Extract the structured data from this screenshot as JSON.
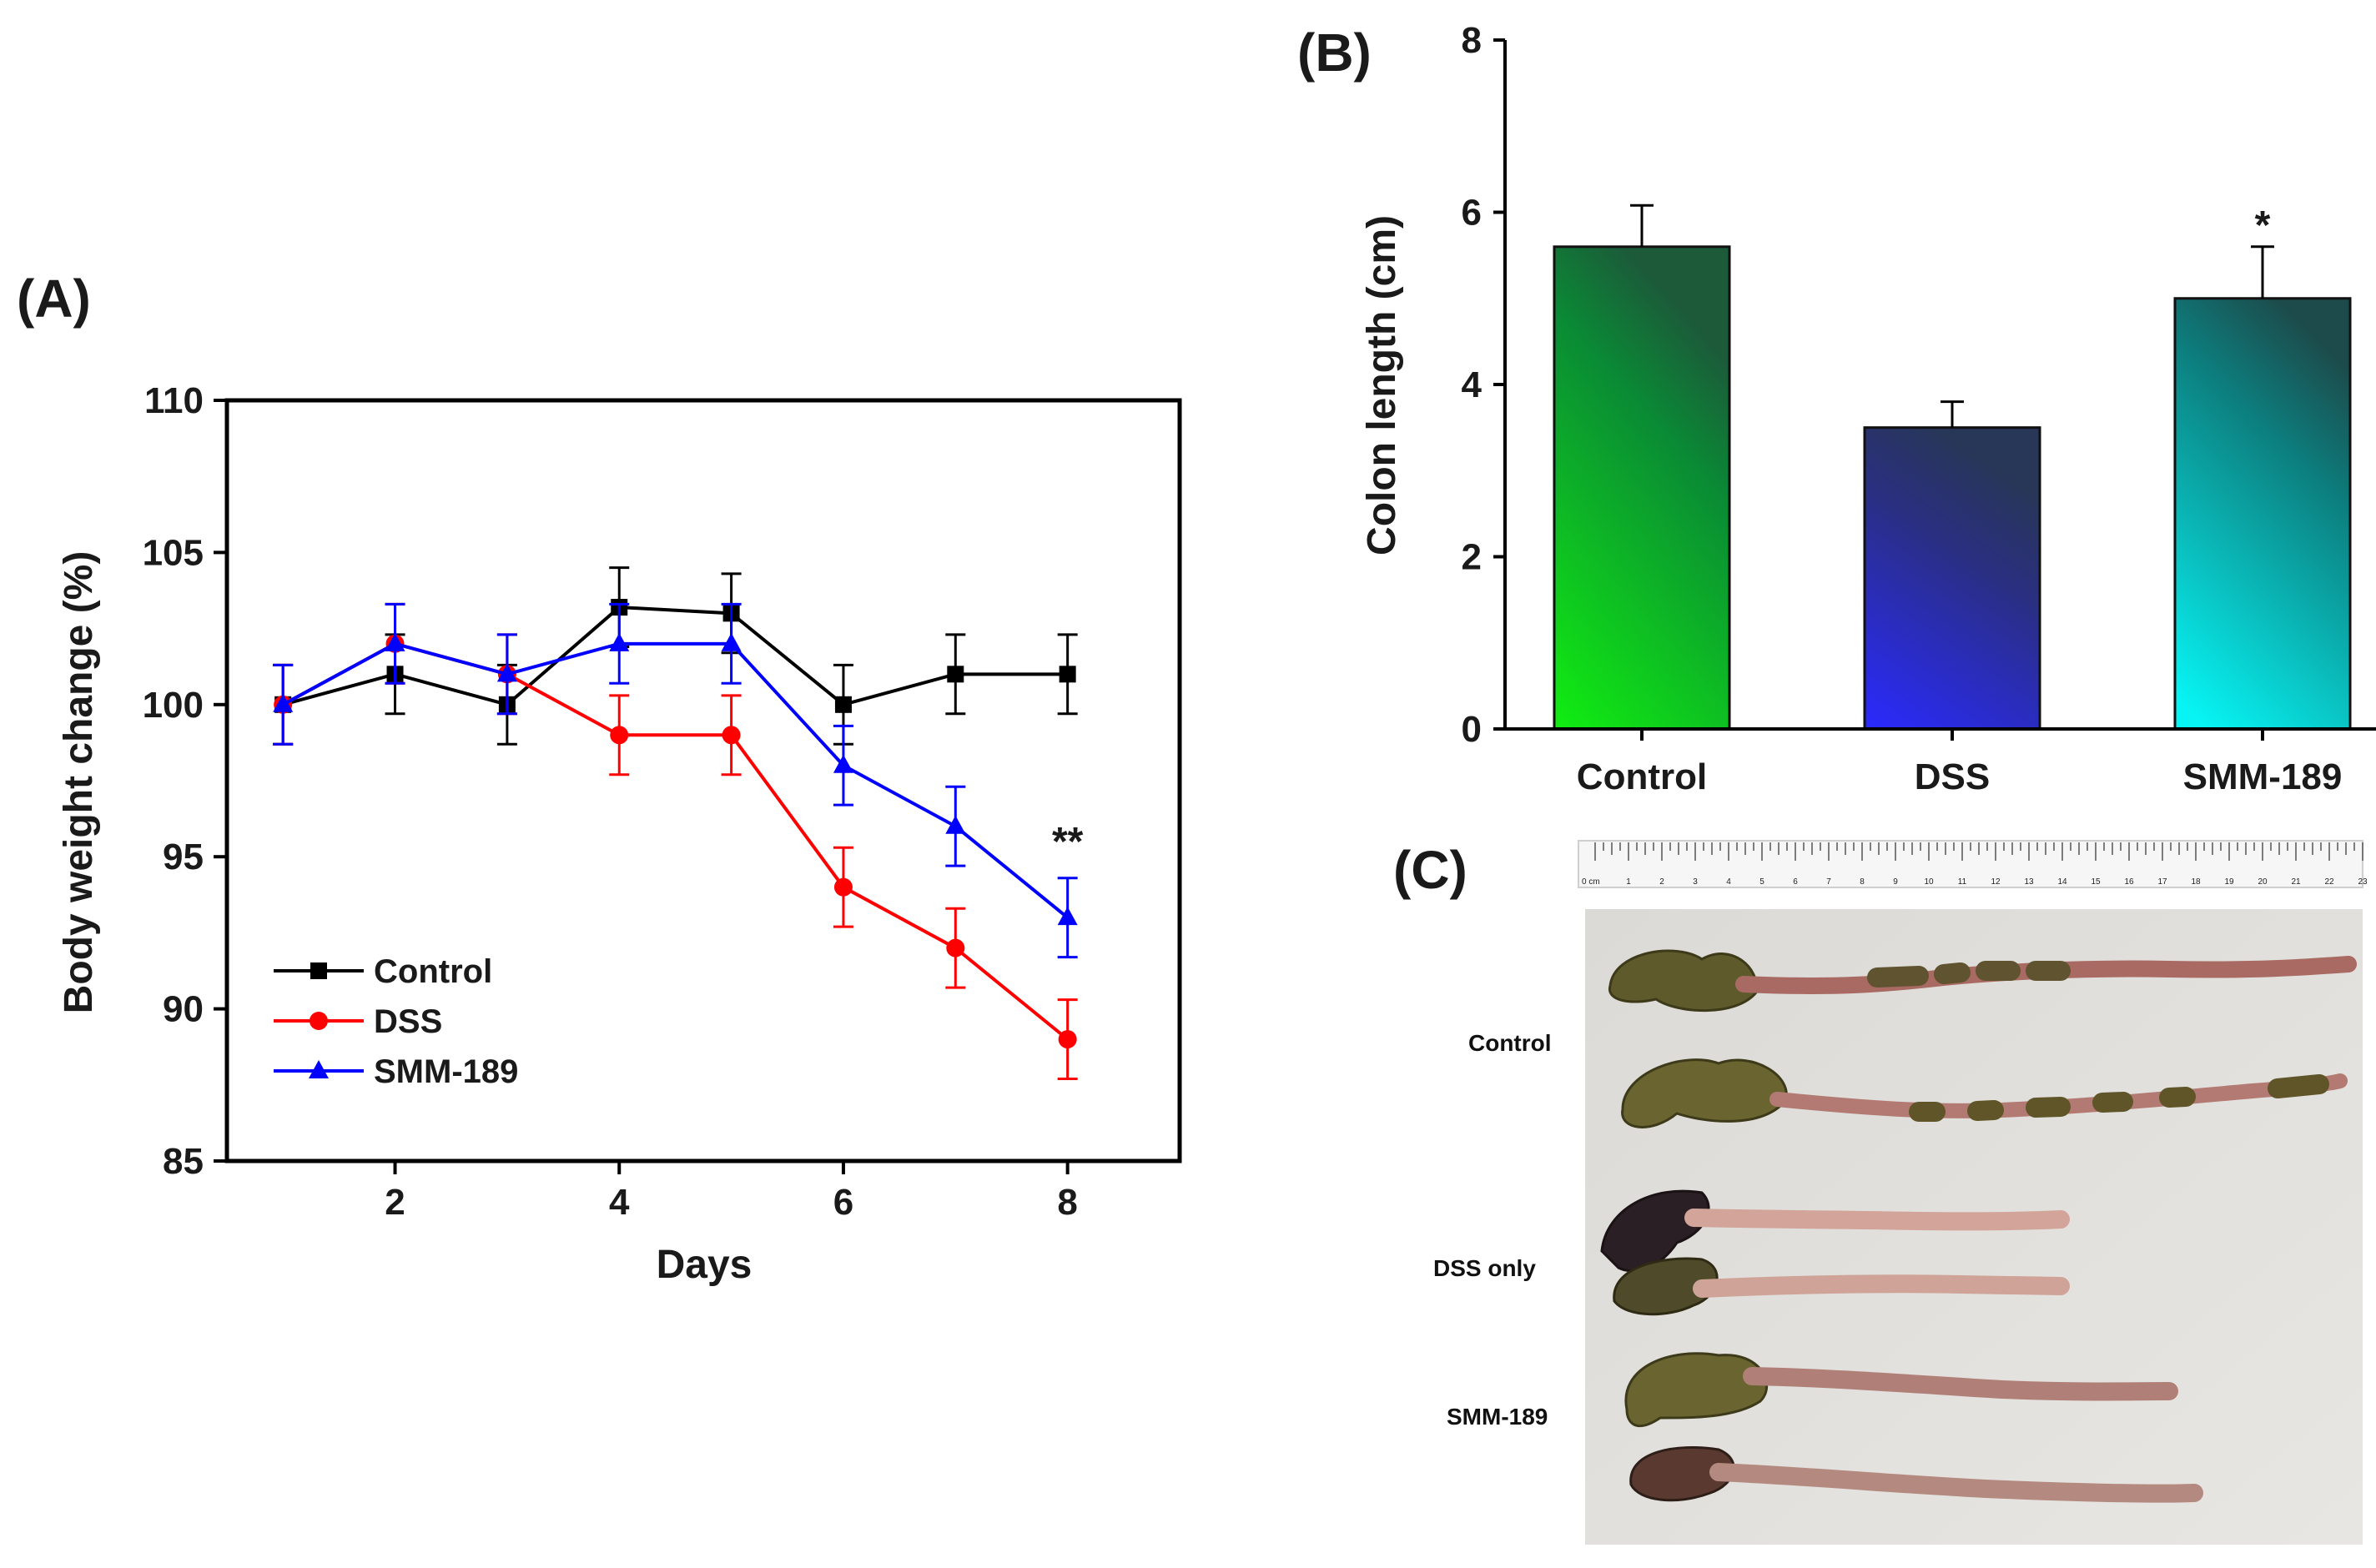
{
  "chart_data": [
    {
      "type": "line",
      "panel_label": "(A)",
      "xlabel": "Days",
      "ylabel": "Body weight change (%)",
      "xlim": [
        0.5,
        9
      ],
      "ylim": [
        85,
        110
      ],
      "xticks": [
        2,
        4,
        6,
        8
      ],
      "yticks": [
        85,
        90,
        95,
        100,
        105,
        110
      ],
      "x": [
        1,
        2,
        3,
        4,
        5,
        6,
        7,
        8
      ],
      "legend_position": "bottom-left",
      "series": [
        {
          "name": "Control",
          "color": "#000000",
          "marker": "square",
          "values": [
            100,
            101,
            100,
            103.2,
            103,
            100,
            101,
            101
          ],
          "errors": [
            1.3,
            1.3,
            1.3,
            1.3,
            1.3,
            1.3,
            1.3,
            1.3
          ]
        },
        {
          "name": "DSS",
          "color": "#ff0000",
          "marker": "circle",
          "values": [
            100,
            102,
            101,
            99,
            99,
            94,
            92,
            89
          ],
          "errors": [
            1.3,
            1.3,
            1.3,
            1.3,
            1.3,
            1.3,
            1.3,
            1.3
          ]
        },
        {
          "name": "SMM-189",
          "color": "#0000ff",
          "marker": "triangle",
          "values": [
            100,
            102,
            101,
            102,
            102,
            98,
            96,
            93
          ],
          "errors": [
            1.3,
            1.3,
            1.3,
            1.3,
            1.3,
            1.3,
            1.3,
            1.3
          ]
        }
      ],
      "annotations": [
        {
          "text": "**",
          "x": 8,
          "y": 95.5
        }
      ]
    },
    {
      "type": "bar",
      "panel_label": "(B)",
      "xlabel": "",
      "ylabel": "Colon length (cm)",
      "ylim": [
        0,
        8
      ],
      "yticks": [
        0,
        2,
        4,
        6,
        8
      ],
      "categories": [
        "Control",
        "DSS",
        "SMM-189"
      ],
      "values": [
        5.6,
        3.5,
        5.0
      ],
      "errors": [
        0.48,
        0.3,
        0.6
      ],
      "colors": [
        "#16e316",
        "#2d2dee",
        "#10e8e8"
      ],
      "annotations": [
        {
          "text": "*",
          "category": "SMM-189"
        }
      ]
    }
  ],
  "photo_panel": {
    "panel_label": "(C)",
    "ruler_label": "0 cm",
    "ruler_numbers": [
      "1",
      "2",
      "3",
      "4",
      "5",
      "6",
      "7",
      "8",
      "9",
      "10",
      "11",
      "12",
      "13",
      "14",
      "15",
      "16",
      "17",
      "18",
      "19",
      "20",
      "21",
      "22",
      "23"
    ],
    "group_labels": [
      "Control",
      "DSS only",
      "SMM-189"
    ]
  }
}
